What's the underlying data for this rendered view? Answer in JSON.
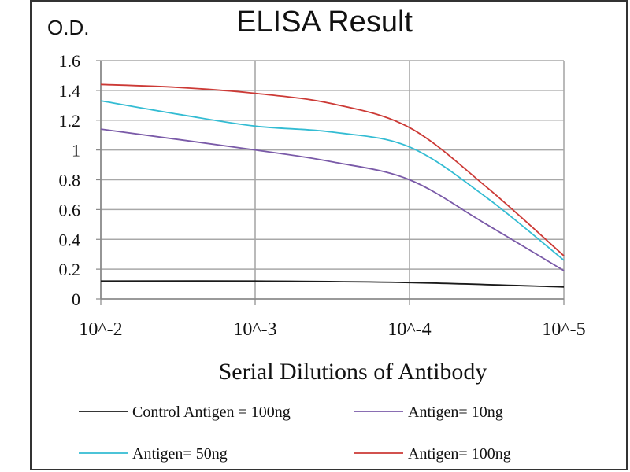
{
  "chart_data": {
    "type": "line",
    "title": "ELISA Result",
    "ylabel": "O.D.",
    "xlabel": "Serial Dilutions  of Antibody",
    "categories": [
      "10^-2",
      "10^-3",
      "10^-4",
      "10^-5"
    ],
    "x": [
      -2,
      -3,
      -4,
      -5
    ],
    "yticks": [
      "0",
      "0.2",
      "0.4",
      "0.6",
      "0.8",
      "1",
      "1.2",
      "1.4",
      "1.6"
    ],
    "ylim": [
      0,
      1.6
    ],
    "grid": true,
    "legend_position": "bottom",
    "series": [
      {
        "name": "Control Antigen = 100ng",
        "color": "#1a1a1a",
        "points": [
          [
            -2,
            0.12
          ],
          [
            -3,
            0.12
          ],
          [
            -4,
            0.11
          ],
          [
            -5,
            0.08
          ]
        ]
      },
      {
        "name": "Antigen= 10ng",
        "color": "#7a5aa8",
        "points": [
          [
            -2,
            1.14
          ],
          [
            -3,
            1.0
          ],
          [
            -3.5,
            0.92
          ],
          [
            -4,
            0.8
          ],
          [
            -4.5,
            0.5
          ],
          [
            -5,
            0.19
          ]
        ]
      },
      {
        "name": "Antigen= 50ng",
        "color": "#33bcd3",
        "points": [
          [
            -2,
            1.33
          ],
          [
            -2.5,
            1.24
          ],
          [
            -3,
            1.16
          ],
          [
            -3.5,
            1.12
          ],
          [
            -4,
            1.02
          ],
          [
            -4.5,
            0.68
          ],
          [
            -5,
            0.26
          ]
        ]
      },
      {
        "name": "Antigen= 100ng",
        "color": "#cc3a36",
        "points": [
          [
            -2,
            1.44
          ],
          [
            -2.5,
            1.42
          ],
          [
            -3,
            1.38
          ],
          [
            -3.5,
            1.31
          ],
          [
            -4,
            1.15
          ],
          [
            -4.5,
            0.75
          ],
          [
            -5,
            0.29
          ]
        ]
      }
    ]
  }
}
